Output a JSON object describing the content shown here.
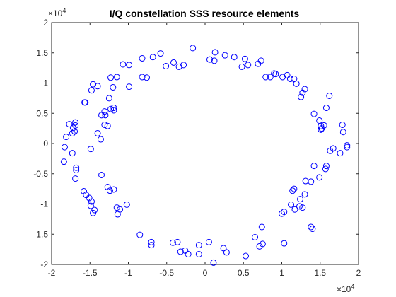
{
  "chart_data": {
    "type": "scatter",
    "title": "I/Q constellation SSS resource elements",
    "xlabel": "",
    "ylabel": "",
    "xlim": [
      -2,
      2
    ],
    "ylim": [
      -2,
      2
    ],
    "xticks": [
      "-2",
      "-1.5",
      "-1",
      "-0.5",
      "0",
      "0.5",
      "1",
      "1.5",
      "2"
    ],
    "yticks": [
      "-2",
      "-1.5",
      "-1",
      "-0.5",
      "0",
      "0.5",
      "1",
      "1.5",
      "2"
    ],
    "x_exponent": "×10",
    "x_exponent_power": "4",
    "y_exponent": "×10",
    "y_exponent_power": "4",
    "grid": false,
    "marker": "circle",
    "color": "#0000ff",
    "series": [
      {
        "points": [
          [
            -0.16,
            1.58
          ],
          [
            0.13,
            1.51
          ],
          [
            0.12,
            1.37
          ],
          [
            0.06,
            1.39
          ],
          [
            0.26,
            1.46
          ],
          [
            -0.58,
            1.49
          ],
          [
            -0.82,
            1.41
          ],
          [
            -0.68,
            1.43
          ],
          [
            -0.41,
            1.34
          ],
          [
            -0.28,
            1.3
          ],
          [
            -0.34,
            1.27
          ],
          [
            -0.51,
            1.28
          ],
          [
            -0.99,
            1.3
          ],
          [
            -0.99,
            0.94
          ],
          [
            -0.82,
            1.1
          ],
          [
            -0.76,
            1.09
          ],
          [
            -1.07,
            1.31
          ],
          [
            -1.15,
            1.1
          ],
          [
            -1.23,
            1.09
          ],
          [
            -1.2,
            0.93
          ],
          [
            -1.25,
            0.75
          ],
          [
            -1.4,
            0.95
          ],
          [
            -1.46,
            0.98
          ],
          [
            -1.48,
            0.88
          ],
          [
            -1.35,
            0.47
          ],
          [
            -1.31,
            0.53
          ],
          [
            -1.19,
            0.55
          ],
          [
            -1.23,
            0.57
          ],
          [
            -1.19,
            0.59
          ],
          [
            -1.3,
            0.47
          ],
          [
            -1.31,
            0.31
          ],
          [
            -1.27,
            0.29
          ],
          [
            -1.4,
            0.17
          ],
          [
            -1.36,
            0.07
          ],
          [
            -1.57,
            0.68
          ],
          [
            -1.56,
            0.68
          ],
          [
            -1.77,
            0.32
          ],
          [
            -1.72,
            0.26
          ],
          [
            -1.69,
            0.3
          ],
          [
            -1.69,
            0.35
          ],
          [
            -1.73,
            0.17
          ],
          [
            -1.7,
            0.2
          ],
          [
            -1.81,
            0.11
          ],
          [
            -1.83,
            -0.06
          ],
          [
            -1.84,
            -0.3
          ],
          [
            -1.73,
            -0.16
          ],
          [
            -1.49,
            -0.09
          ],
          [
            -1.68,
            -0.4
          ],
          [
            -1.68,
            -0.44
          ],
          [
            -1.69,
            -0.58
          ],
          [
            -1.35,
            -0.52
          ],
          [
            -1.27,
            -0.72
          ],
          [
            -1.24,
            -0.78
          ],
          [
            -1.19,
            -0.76
          ],
          [
            -1.58,
            -0.79
          ],
          [
            -1.55,
            -0.85
          ],
          [
            -1.51,
            -0.9
          ],
          [
            -1.48,
            -0.96
          ],
          [
            -1.49,
            -1.03
          ],
          [
            -1.44,
            -1.1
          ],
          [
            -1.46,
            -1.15
          ],
          [
            -1.15,
            -1.06
          ],
          [
            -1.11,
            -1.09
          ],
          [
            -1.02,
            -1.01
          ],
          [
            -1.14,
            -1.17
          ],
          [
            -0.85,
            -1.51
          ],
          [
            -0.7,
            -1.63
          ],
          [
            -0.7,
            -1.68
          ],
          [
            -0.42,
            -1.64
          ],
          [
            -0.36,
            -1.63
          ],
          [
            -0.32,
            -1.79
          ],
          [
            -0.26,
            -1.77
          ],
          [
            -0.22,
            -1.83
          ],
          [
            -0.08,
            -1.83
          ],
          [
            -0.08,
            -1.68
          ],
          [
            0.05,
            -1.63
          ],
          [
            0.11,
            -1.97
          ],
          [
            0.24,
            -1.73
          ],
          [
            0.28,
            -1.8
          ],
          [
            0.53,
            -1.86
          ],
          [
            0.71,
            -1.7
          ],
          [
            0.74,
            -1.38
          ],
          [
            0.75,
            -1.66
          ],
          [
            0.65,
            -1.55
          ],
          [
            1.03,
            -1.65
          ],
          [
            1.03,
            -1.13
          ],
          [
            1.0,
            -1.16
          ],
          [
            1.12,
            -1.01
          ],
          [
            1.17,
            -1.09
          ],
          [
            1.23,
            -1.04
          ],
          [
            1.24,
            -0.92
          ],
          [
            1.27,
            -1.06
          ],
          [
            1.3,
            -0.84
          ],
          [
            1.38,
            -1.38
          ],
          [
            1.4,
            -1.41
          ],
          [
            1.14,
            -0.78
          ],
          [
            1.16,
            -0.75
          ],
          [
            1.31,
            -0.62
          ],
          [
            1.38,
            -0.63
          ],
          [
            1.42,
            -0.37
          ],
          [
            1.49,
            -0.56
          ],
          [
            1.58,
            -0.37
          ],
          [
            1.57,
            -0.42
          ],
          [
            1.63,
            -0.12
          ],
          [
            1.67,
            -0.08
          ],
          [
            1.76,
            -0.16
          ],
          [
            1.85,
            -0.03
          ],
          [
            1.85,
            -0.06
          ],
          [
            1.8,
            0.19
          ],
          [
            1.79,
            0.31
          ],
          [
            1.55,
            0.3
          ],
          [
            1.51,
            0.23
          ],
          [
            1.52,
            0.25
          ],
          [
            1.51,
            0.29
          ],
          [
            1.42,
            0.49
          ],
          [
            1.49,
            0.38
          ],
          [
            1.58,
            0.59
          ],
          [
            1.62,
            0.79
          ],
          [
            1.3,
            0.9
          ],
          [
            1.25,
            0.77
          ],
          [
            1.27,
            0.84
          ],
          [
            1.19,
            0.99
          ],
          [
            1.16,
            1.07
          ],
          [
            1.11,
            1.07
          ],
          [
            1.01,
            1.1
          ],
          [
            0.92,
            1.15
          ],
          [
            0.85,
            1.1
          ],
          [
            0.79,
            1.1
          ],
          [
            0.73,
            1.37
          ],
          [
            0.69,
            1.32
          ],
          [
            0.56,
            1.3
          ],
          [
            0.48,
            1.27
          ],
          [
            0.52,
            1.4
          ],
          [
            0.38,
            1.43
          ],
          [
            0.9,
            1.16
          ],
          [
            1.07,
            1.13
          ]
        ]
      }
    ]
  }
}
